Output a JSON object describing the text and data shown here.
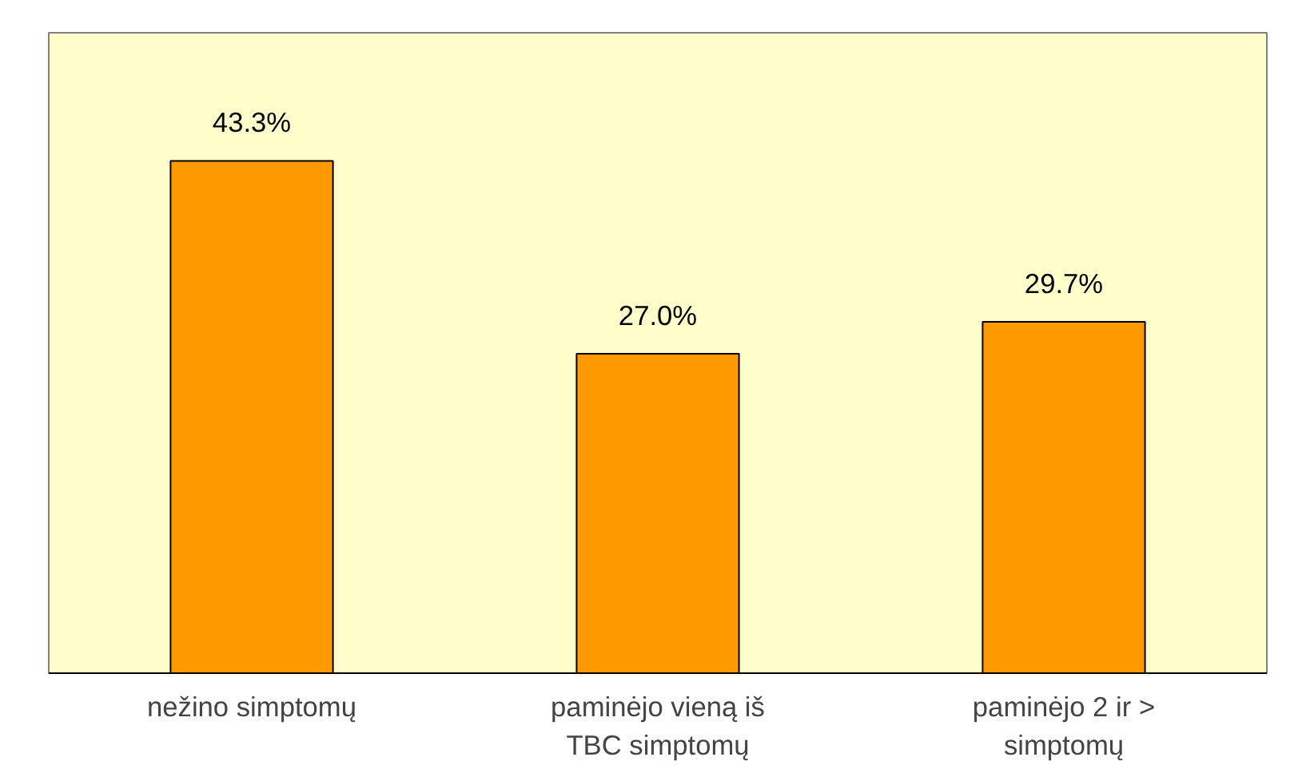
{
  "chart_data": {
    "type": "bar",
    "categories": [
      "nežino simptomų",
      "paminėjo vieną iš TBC simptomų",
      "paminėjo 2 ir > simptomų"
    ],
    "values": [
      43.3,
      27.0,
      29.7
    ],
    "color": "#ff9900",
    "value_labels": [
      "43.3%",
      "27.0%",
      "29.7%"
    ],
    "grid": false
  }
}
